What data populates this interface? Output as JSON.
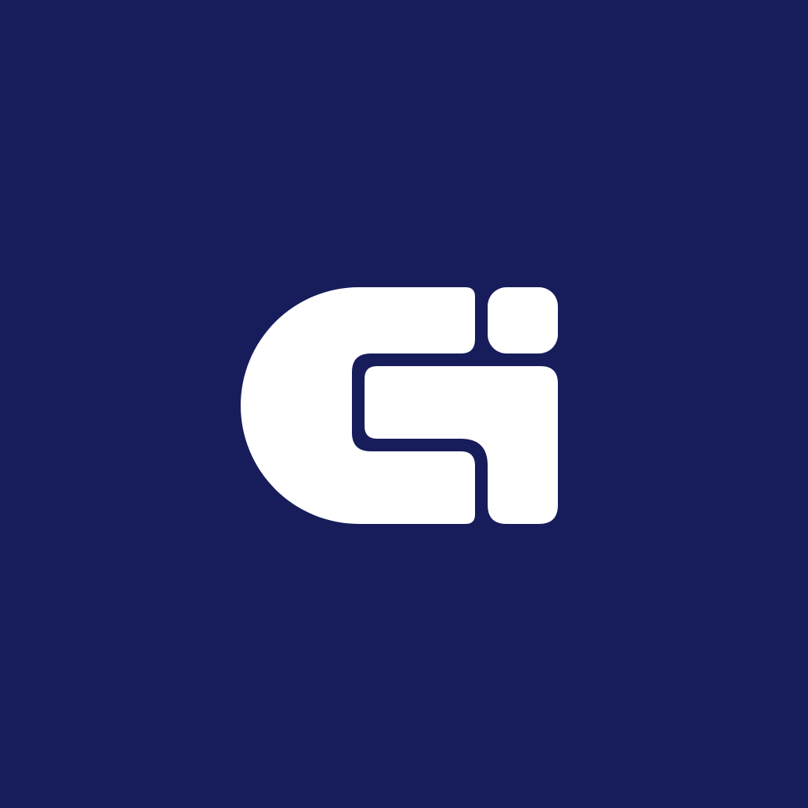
{
  "colors": {
    "background": "#171c5b",
    "mark": "#ffffff"
  },
  "logo": {
    "icon": "gi-monogram-icon"
  }
}
